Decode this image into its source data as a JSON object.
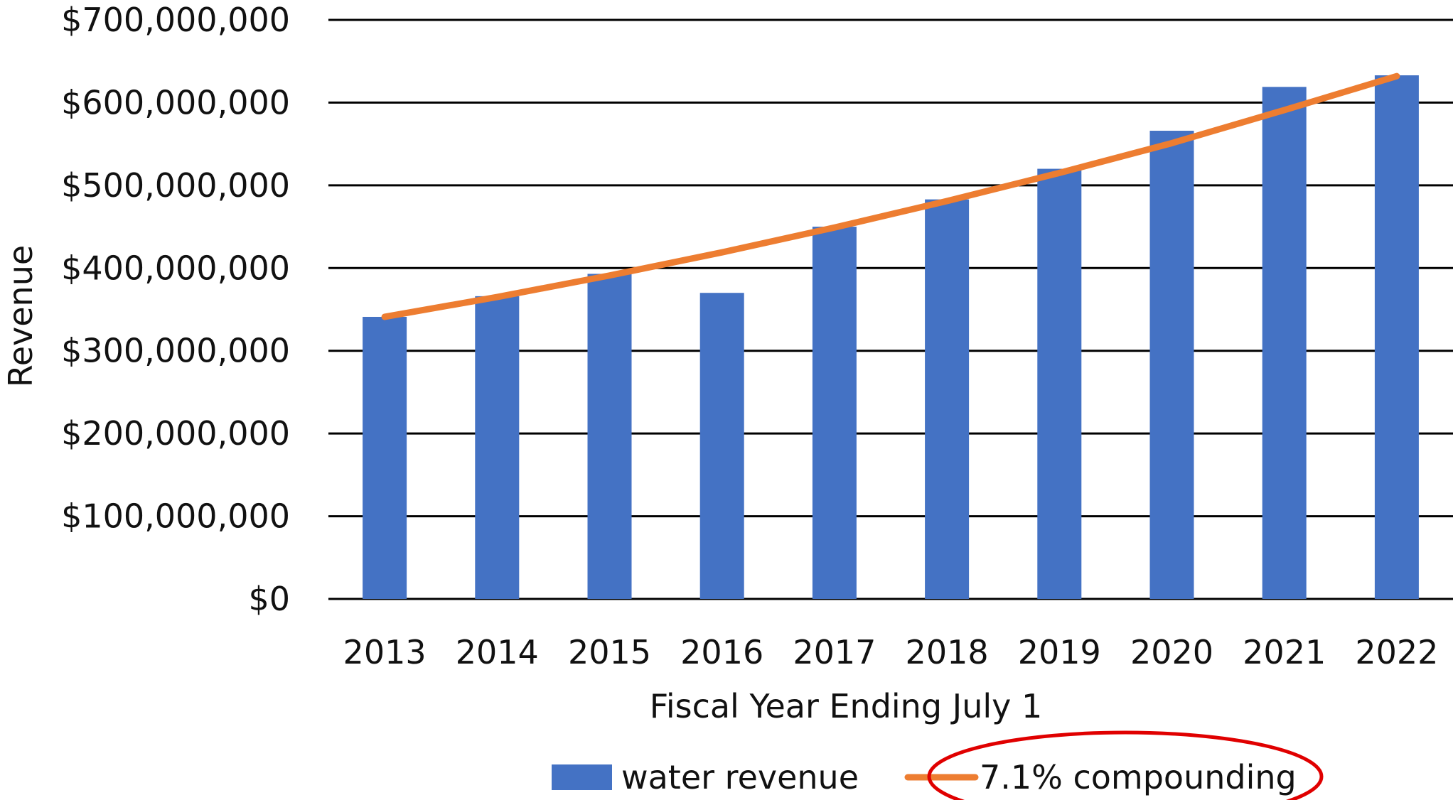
{
  "chart_data": {
    "type": "bar",
    "title": "",
    "xlabel": "Fiscal Year Ending July 1",
    "ylabel": "Revenue",
    "categories": [
      "2013",
      "2014",
      "2015",
      "2016",
      "2017",
      "2018",
      "2019",
      "2020",
      "2021",
      "2022"
    ],
    "ylim": [
      0,
      700000000
    ],
    "yticks": [
      0,
      100000000,
      200000000,
      300000000,
      400000000,
      500000000,
      600000000,
      700000000
    ],
    "ytick_labels": [
      "$0",
      "$100,000,000",
      "$200,000,000",
      "$300,000,000",
      "$400,000,000",
      "$500,000,000",
      "$600,000,000",
      "$700,000,000"
    ],
    "grid": true,
    "legend_position": "bottom",
    "series": [
      {
        "name": "water revenue",
        "kind": "bar",
        "color": "#4472C4",
        "values": [
          341000000,
          366000000,
          393000000,
          370000000,
          450000000,
          483000000,
          520000000,
          566000000,
          619000000,
          633000000
        ]
      },
      {
        "name": "7.1% compounding",
        "kind": "line",
        "color": "#ED7D31",
        "values": [
          341000000,
          365000000,
          391000000,
          419000000,
          449000000,
          481000000,
          515000000,
          551000000,
          591000000,
          632000000
        ]
      }
    ],
    "annotations": [
      {
        "type": "ellipse",
        "target": "7.1% compounding",
        "color": "#E00000"
      }
    ]
  }
}
